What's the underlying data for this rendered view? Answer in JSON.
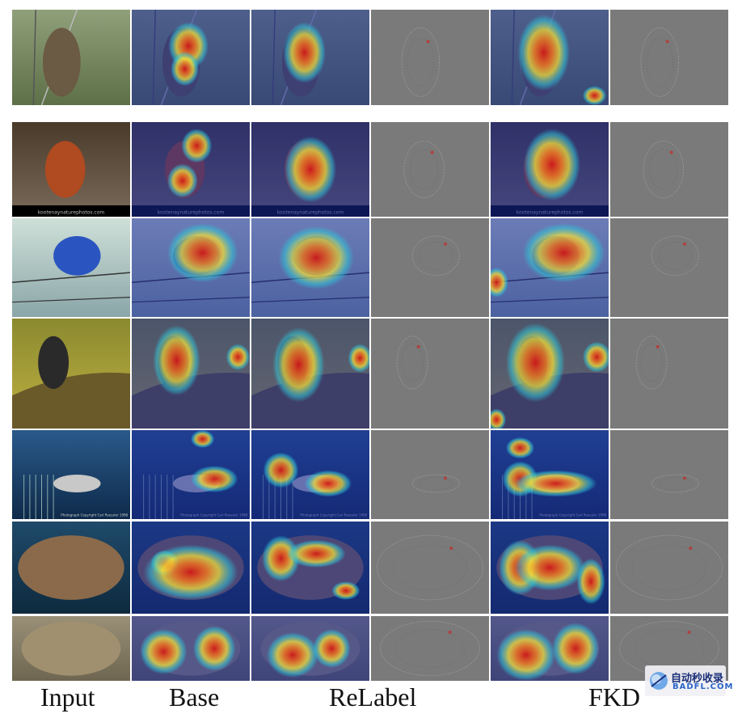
{
  "columns": [
    "Input",
    "Base",
    "ReLabel",
    "FKD"
  ],
  "rows": [
    {
      "subject": "sparrow-on-fence",
      "caption": ""
    },
    {
      "subject": "robin-on-ground",
      "caption": "kootenaynaturephotos.com"
    },
    {
      "subject": "indigo-bunting-on-wire",
      "caption": ""
    },
    {
      "subject": "junco-on-mossy-rock",
      "caption": ""
    },
    {
      "subject": "shark-and-cage",
      "caption": "Photograph Copyright Carl Roessler 1998"
    },
    {
      "subject": "turtle-shell",
      "caption": ""
    },
    {
      "subject": "flatfish-on-sand",
      "caption": ""
    }
  ],
  "watermark": {
    "chinese": "自动秒收录",
    "english": "BADFL.COM"
  },
  "colors": {
    "heat_hot": "#d01818",
    "heat_warm": "#f2e03a",
    "heat_cool": "#2fc6d8",
    "heat_cold": "#1a2a9a",
    "gradient_gray": "#7a7a7a"
  }
}
